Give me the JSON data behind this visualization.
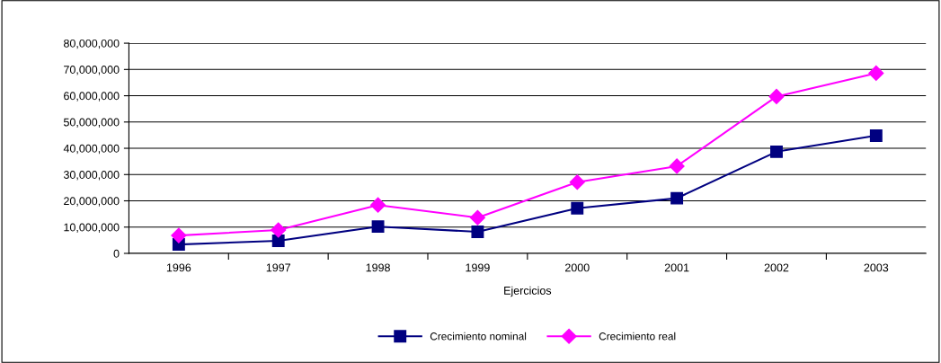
{
  "chart_data": {
    "type": "line",
    "xlabel": "Ejercicios",
    "categories": [
      "1996",
      "1997",
      "1998",
      "1999",
      "2000",
      "2001",
      "2002",
      "2003"
    ],
    "series": [
      {
        "name": "Crecimiento nominal",
        "color": "#000080",
        "marker": "square",
        "values": [
          3400000,
          4800000,
          10200000,
          8200000,
          17200000,
          21000000,
          38700000,
          44800000
        ]
      },
      {
        "name": "Crecimiento real",
        "color": "#ff00ff",
        "marker": "diamond",
        "values": [
          6800000,
          8900000,
          18400000,
          13600000,
          27100000,
          33200000,
          59700000,
          68600000
        ]
      }
    ],
    "ylim": [
      0,
      80000000
    ],
    "yticks": [
      0,
      {
        "value": 10000000,
        "label": "10,000,000"
      },
      {
        "value": 20000000,
        "label": "20,000,000"
      },
      {
        "value": 30000000,
        "label": "30,000,000"
      },
      {
        "value": 40000000,
        "label": "40,000,000"
      },
      {
        "value": 50000000,
        "label": "50,000,000"
      },
      {
        "value": 60000000,
        "label": "60,000,000"
      },
      {
        "value": 70000000,
        "label": "70,000,000"
      },
      {
        "value": 80000000,
        "label": "80,000,000"
      }
    ],
    "grid": "y",
    "legend": "bottom",
    "line_style": "solid"
  }
}
